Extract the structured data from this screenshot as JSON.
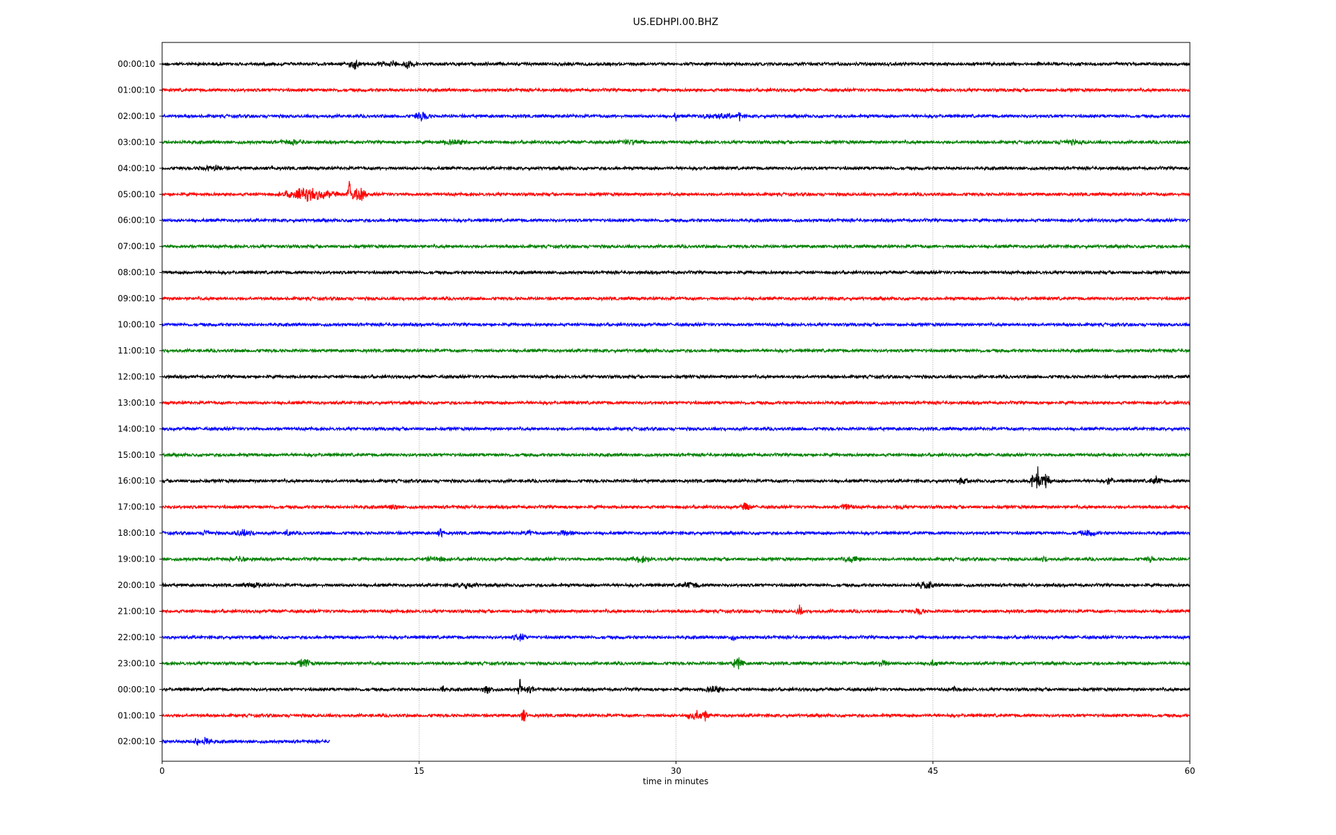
{
  "chart_data": {
    "type": "line",
    "title": "US.EDHPI.00.BHZ",
    "xlabel": "time in minutes",
    "ylabel": "",
    "xlim": [
      0,
      60
    ],
    "xticks": [
      "0",
      "15",
      "30",
      "45",
      "60"
    ],
    "xtick_values": [
      0,
      15,
      30,
      45,
      60
    ],
    "grid": "vertical dotted at 15, 30, 45",
    "traces": [
      {
        "label": "00:00:10",
        "color": "#000000",
        "end": 60,
        "noise": 1.0,
        "events": [
          [
            11.2,
            9,
            0.3
          ],
          [
            12.9,
            5,
            0.1
          ],
          [
            13.5,
            6,
            0.2
          ],
          [
            14.3,
            7,
            0.3
          ],
          [
            14.8,
            6,
            0.1
          ]
        ]
      },
      {
        "label": "01:00:10",
        "color": "#ff0000",
        "end": 60,
        "noise": 1.0,
        "events": []
      },
      {
        "label": "02:00:10",
        "color": "#0000ff",
        "end": 60,
        "noise": 1.0,
        "events": [
          [
            15.2,
            7,
            0.5
          ],
          [
            30.0,
            10,
            0.05
          ],
          [
            33.7,
            13,
            0.05
          ],
          [
            32.5,
            3,
            1.5
          ]
        ]
      },
      {
        "label": "03:00:10",
        "color": "#008000",
        "end": 60,
        "noise": 1.0,
        "events": [
          [
            7.6,
            3,
            1.0
          ],
          [
            17.0,
            3,
            1.0
          ],
          [
            27.5,
            3,
            1.0
          ],
          [
            53.0,
            3,
            1.0
          ]
        ]
      },
      {
        "label": "04:00:10",
        "color": "#000000",
        "end": 60,
        "noise": 1.0,
        "events": [
          [
            2.9,
            3,
            1.0
          ],
          [
            6.4,
            5,
            0.05
          ]
        ]
      },
      {
        "label": "05:00:10",
        "color": "#ff0000",
        "end": 60,
        "noise": 1.0,
        "events": [
          [
            8.5,
            9,
            2.0
          ],
          [
            11.0,
            28,
            0.2
          ],
          [
            11.5,
            11,
            0.5
          ]
        ]
      },
      {
        "label": "06:00:10",
        "color": "#0000ff",
        "end": 60,
        "noise": 1.0,
        "events": []
      },
      {
        "label": "07:00:10",
        "color": "#008000",
        "end": 60,
        "noise": 1.0,
        "events": []
      },
      {
        "label": "08:00:10",
        "color": "#000000",
        "end": 60,
        "noise": 1.0,
        "events": []
      },
      {
        "label": "09:00:10",
        "color": "#ff0000",
        "end": 60,
        "noise": 1.0,
        "events": []
      },
      {
        "label": "10:00:10",
        "color": "#0000ff",
        "end": 60,
        "noise": 1.0,
        "events": []
      },
      {
        "label": "11:00:10",
        "color": "#008000",
        "end": 60,
        "noise": 1.0,
        "events": []
      },
      {
        "label": "12:00:10",
        "color": "#000000",
        "end": 60,
        "noise": 1.0,
        "events": []
      },
      {
        "label": "13:00:10",
        "color": "#ff0000",
        "end": 60,
        "noise": 1.0,
        "events": []
      },
      {
        "label": "14:00:10",
        "color": "#0000ff",
        "end": 60,
        "noise": 1.0,
        "events": []
      },
      {
        "label": "15:00:10",
        "color": "#008000",
        "end": 60,
        "noise": 1.0,
        "events": []
      },
      {
        "label": "16:00:10",
        "color": "#000000",
        "end": 60,
        "noise": 1.0,
        "events": [
          [
            46.7,
            4,
            0.4
          ],
          [
            50.8,
            8,
            0.3
          ],
          [
            51.1,
            30,
            0.1
          ],
          [
            51.6,
            12,
            0.4
          ],
          [
            55.3,
            7,
            0.2
          ],
          [
            58.0,
            6,
            0.4
          ]
        ]
      },
      {
        "label": "17:00:10",
        "color": "#ff0000",
        "end": 60,
        "noise": 1.0,
        "events": [
          [
            13.5,
            5,
            0.3
          ],
          [
            34.1,
            6,
            0.3
          ],
          [
            40.0,
            5,
            0.4
          ],
          [
            43.0,
            3,
            0.3
          ]
        ]
      },
      {
        "label": "18:00:10",
        "color": "#0000ff",
        "end": 60,
        "noise": 1.0,
        "events": [
          [
            2.6,
            6,
            0.2
          ],
          [
            4.8,
            4,
            0.8
          ],
          [
            7.4,
            6,
            0.2
          ],
          [
            16.3,
            8,
            0.2
          ],
          [
            21.4,
            5,
            0.2
          ],
          [
            23.5,
            3,
            0.8
          ],
          [
            54.0,
            3,
            0.8
          ]
        ]
      },
      {
        "label": "19:00:10",
        "color": "#008000",
        "end": 60,
        "noise": 1.0,
        "events": [
          [
            4.6,
            3,
            0.8
          ],
          [
            16.0,
            3,
            0.8
          ],
          [
            28.0,
            4,
            0.8
          ],
          [
            40.3,
            4,
            0.8
          ],
          [
            51.5,
            4,
            0.2
          ],
          [
            57.7,
            4,
            0.3
          ]
        ]
      },
      {
        "label": "20:00:10",
        "color": "#000000",
        "end": 60,
        "noise": 1.0,
        "events": [
          [
            5.4,
            3,
            0.8
          ],
          [
            17.8,
            4,
            0.8
          ],
          [
            30.8,
            4,
            0.8
          ],
          [
            44.6,
            4,
            0.8
          ]
        ]
      },
      {
        "label": "21:00:10",
        "color": "#ff0000",
        "end": 60,
        "noise": 1.0,
        "events": [
          [
            37.2,
            8,
            0.2
          ],
          [
            44.2,
            6,
            0.3
          ]
        ]
      },
      {
        "label": "22:00:10",
        "color": "#0000ff",
        "end": 60,
        "noise": 1.0,
        "events": [
          [
            20.9,
            5,
            0.5
          ],
          [
            33.3,
            4,
            0.2
          ]
        ]
      },
      {
        "label": "23:00:10",
        "color": "#008000",
        "end": 60,
        "noise": 1.0,
        "events": [
          [
            8.3,
            7,
            0.5
          ],
          [
            33.6,
            8,
            0.4
          ],
          [
            42.0,
            4,
            0.6
          ],
          [
            45.0,
            4,
            0.3
          ]
        ]
      },
      {
        "label": "00:00:10",
        "color": "#000000",
        "end": 60,
        "noise": 1.0,
        "events": [
          [
            16.4,
            10,
            0.1
          ],
          [
            19.0,
            6,
            0.4
          ],
          [
            20.9,
            18,
            0.1
          ],
          [
            21.4,
            4,
            0.4
          ],
          [
            32.2,
            5,
            0.6
          ],
          [
            46.3,
            4,
            0.2
          ]
        ]
      },
      {
        "label": "01:00:10",
        "color": "#ff0000",
        "end": 60,
        "noise": 1.0,
        "events": [
          [
            21.1,
            10,
            0.2
          ],
          [
            31.1,
            8,
            0.5
          ],
          [
            31.7,
            8,
            0.2
          ]
        ]
      },
      {
        "label": "02:00:10",
        "color": "#0000ff",
        "end": 9.8,
        "noise": 1.0,
        "events": [
          [
            2.0,
            7,
            0.2
          ],
          [
            2.6,
            8,
            0.3
          ]
        ]
      }
    ]
  }
}
